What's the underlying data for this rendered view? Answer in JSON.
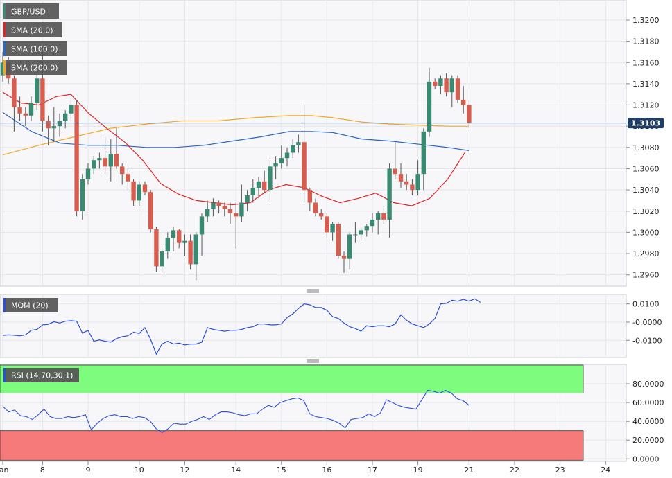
{
  "chart_data": [
    {
      "panel": "price",
      "type": "candlestick",
      "symbol": "GBP/USD",
      "ylim": [
        1.295,
        1.3215
      ],
      "yticks": [
        "1.3200",
        "1.3180",
        "1.3160",
        "1.3140",
        "1.3120",
        "1.3100",
        "1.3080",
        "1.3060",
        "1.3040",
        "1.3020",
        "1.3000",
        "1.2980",
        "1.2960"
      ],
      "yticks_values": [
        1.32,
        1.318,
        1.316,
        1.314,
        1.312,
        1.31,
        1.308,
        1.306,
        1.304,
        1.302,
        1.3,
        1.298,
        1.296
      ],
      "last_price": 1.3103,
      "last_price_label": "1.3103",
      "ohlc": [
        [
          1.3148,
          1.317,
          1.3142,
          1.316
        ],
        [
          1.316,
          1.3165,
          1.314,
          1.3145
        ],
        [
          1.3145,
          1.3148,
          1.3095,
          1.3118
        ],
        [
          1.3118,
          1.3128,
          1.3105,
          1.3112
        ],
        [
          1.3112,
          1.3118,
          1.31,
          1.311
        ],
        [
          1.311,
          1.3128,
          1.3105,
          1.3122
        ],
        [
          1.3122,
          1.315,
          1.3115,
          1.3145
        ],
        [
          1.3145,
          1.317,
          1.3095,
          1.3105
        ],
        [
          1.3105,
          1.311,
          1.3082,
          1.3098
        ],
        [
          1.3098,
          1.3118,
          1.3085,
          1.31
        ],
        [
          1.31,
          1.3112,
          1.309,
          1.3105
        ],
        [
          1.3105,
          1.3115,
          1.3098,
          1.3112
        ],
        [
          1.3112,
          1.3125,
          1.3105,
          1.312
        ],
        [
          1.312,
          1.3125,
          1.3015,
          1.302
        ],
        [
          1.302,
          1.3055,
          1.3012,
          1.305
        ],
        [
          1.305,
          1.3065,
          1.3045,
          1.306
        ],
        [
          1.306,
          1.3072,
          1.3055,
          1.3068
        ],
        [
          1.3068,
          1.3075,
          1.306,
          1.307
        ],
        [
          1.307,
          1.309,
          1.3055,
          1.3062
        ],
        [
          1.3062,
          1.3088,
          1.3048,
          1.3074
        ],
        [
          1.3074,
          1.3098,
          1.306,
          1.3062
        ],
        [
          1.3062,
          1.3065,
          1.3045,
          1.3055
        ],
        [
          1.3055,
          1.306,
          1.304,
          1.3048
        ],
        [
          1.3048,
          1.305,
          1.3025,
          1.303
        ],
        [
          1.303,
          1.3048,
          1.3025,
          1.3045
        ],
        [
          1.3045,
          1.3048,
          1.3035,
          1.3038
        ],
        [
          1.3038,
          1.304,
          1.3,
          1.3003
        ],
        [
          1.3003,
          1.3005,
          1.2963,
          1.2968
        ],
        [
          1.2968,
          1.2985,
          1.2962,
          1.2982
        ],
        [
          1.2982,
          1.3,
          1.2975,
          1.2995
        ],
        [
          1.2995,
          1.3005,
          1.2982,
          1.3002
        ],
        [
          1.3002,
          1.3003,
          1.2985,
          1.299
        ],
        [
          1.299,
          1.2998,
          1.2978,
          1.2992
        ],
        [
          1.2992,
          1.2998,
          1.2965,
          1.297
        ],
        [
          1.297,
          1.3,
          1.2955,
          1.2998
        ],
        [
          1.2998,
          1.3018,
          1.2978,
          1.3015
        ],
        [
          1.3015,
          1.303,
          1.301,
          1.3022
        ],
        [
          1.3022,
          1.3032,
          1.3015,
          1.3028
        ],
        [
          1.3028,
          1.303,
          1.3018,
          1.3025
        ],
        [
          1.3025,
          1.3028,
          1.3015,
          1.3022
        ],
        [
          1.3022,
          1.3028,
          1.3008,
          1.3018
        ],
        [
          1.3018,
          1.3028,
          1.2985,
          1.3015
        ],
        [
          1.3015,
          1.3045,
          1.301,
          1.3028
        ],
        [
          1.3028,
          1.304,
          1.302,
          1.3035
        ],
        [
          1.3035,
          1.305,
          1.3028,
          1.3042
        ],
        [
          1.3042,
          1.3052,
          1.3032,
          1.3048
        ],
        [
          1.3048,
          1.3058,
          1.3038,
          1.304
        ],
        [
          1.304,
          1.3068,
          1.303,
          1.3062
        ],
        [
          1.3062,
          1.3072,
          1.305,
          1.3065
        ],
        [
          1.3065,
          1.3082,
          1.306,
          1.307
        ],
        [
          1.307,
          1.308,
          1.3062,
          1.3075
        ],
        [
          1.3075,
          1.3088,
          1.307,
          1.3082
        ],
        [
          1.3082,
          1.3092,
          1.3075,
          1.3085
        ],
        [
          1.3085,
          1.312,
          1.3028,
          1.304
        ],
        [
          1.304,
          1.3042,
          1.302,
          1.3028
        ],
        [
          1.3028,
          1.3032,
          1.3015,
          1.3018
        ],
        [
          1.3018,
          1.3022,
          1.3012,
          1.3015
        ],
        [
          1.3015,
          1.3018,
          1.2995,
          1.3
        ],
        [
          1.3,
          1.301,
          1.2992,
          1.3008
        ],
        [
          1.3008,
          1.301,
          1.2975,
          1.2978
        ],
        [
          1.2978,
          1.2982,
          1.2962,
          1.2975
        ],
        [
          1.2975,
          1.3,
          1.2965,
          1.2998
        ],
        [
          1.2998,
          1.301,
          1.299,
          1.2998
        ],
        [
          1.2998,
          1.3005,
          1.2992,
          1.3002
        ],
        [
          1.3002,
          1.3008,
          1.2996,
          1.3006
        ],
        [
          1.3006,
          1.3018,
          1.3,
          1.3012
        ],
        [
          1.3012,
          1.302,
          1.2998,
          1.3018
        ],
        [
          1.3018,
          1.3025,
          1.3008,
          1.3012
        ],
        [
          1.3012,
          1.3065,
          1.2995,
          1.306
        ],
        [
          1.306,
          1.3085,
          1.305,
          1.3055
        ],
        [
          1.3055,
          1.3065,
          1.3042,
          1.3048
        ],
        [
          1.3048,
          1.3055,
          1.304,
          1.3045
        ],
        [
          1.3045,
          1.305,
          1.3035,
          1.304
        ],
        [
          1.304,
          1.3068,
          1.3035,
          1.3055
        ],
        [
          1.3055,
          1.3098,
          1.304,
          1.3095
        ],
        [
          1.3095,
          1.3155,
          1.309,
          1.3142
        ],
        [
          1.3142,
          1.3145,
          1.3135,
          1.3138
        ],
        [
          1.3138,
          1.3148,
          1.313,
          1.3145
        ],
        [
          1.3145,
          1.315,
          1.3128,
          1.3132
        ],
        [
          1.3132,
          1.3148,
          1.3118,
          1.3145
        ],
        [
          1.3145,
          1.3148,
          1.3122,
          1.3125
        ],
        [
          1.3125,
          1.3138,
          1.3112,
          1.312
        ],
        [
          1.312,
          1.3122,
          1.3098,
          1.3103
        ]
      ],
      "sma20_label": "SMA (20,0)",
      "sma20": [
        [
          0,
          1.3132
        ],
        [
          5,
          1.3122
        ],
        [
          10,
          1.312
        ],
        [
          15,
          1.3128
        ],
        [
          19,
          1.313
        ],
        [
          24,
          1.3112
        ],
        [
          29,
          1.3098
        ],
        [
          34,
          1.3085
        ],
        [
          39,
          1.3068
        ],
        [
          44,
          1.3046
        ],
        [
          49,
          1.3036
        ],
        [
          54,
          1.303
        ],
        [
          59,
          1.3028
        ],
        [
          64,
          1.3026
        ],
        [
          69,
          1.3028
        ],
        [
          74,
          1.304
        ],
        [
          79,
          1.3045
        ],
        [
          84,
          1.3042
        ],
        [
          89,
          1.3034
        ],
        [
          94,
          1.3028
        ],
        [
          99,
          1.3032
        ],
        [
          104,
          1.3037
        ],
        [
          109,
          1.3028
        ],
        [
          114,
          1.3025
        ],
        [
          119,
          1.3032
        ],
        [
          124,
          1.305
        ],
        [
          129,
          1.3076
        ]
      ],
      "sma100_label": "SMA (100,0)",
      "sma100": [
        [
          0,
          1.3113
        ],
        [
          8,
          1.3095
        ],
        [
          16,
          1.3084
        ],
        [
          24,
          1.3082
        ],
        [
          32,
          1.3082
        ],
        [
          40,
          1.308
        ],
        [
          48,
          1.308
        ],
        [
          56,
          1.3082
        ],
        [
          64,
          1.3086
        ],
        [
          72,
          1.309
        ],
        [
          80,
          1.3095
        ],
        [
          86,
          1.3095
        ],
        [
          92,
          1.3094
        ],
        [
          100,
          1.3088
        ],
        [
          108,
          1.3086
        ],
        [
          116,
          1.3083
        ],
        [
          124,
          1.308
        ],
        [
          130,
          1.3077
        ]
      ],
      "sma200_label": "SMA (200,0)",
      "sma200": [
        [
          0,
          1.3073
        ],
        [
          10,
          1.3082
        ],
        [
          20,
          1.309
        ],
        [
          30,
          1.3098
        ],
        [
          40,
          1.3102
        ],
        [
          50,
          1.3105
        ],
        [
          60,
          1.3105
        ],
        [
          70,
          1.3108
        ],
        [
          80,
          1.311
        ],
        [
          86,
          1.311
        ],
        [
          92,
          1.3108
        ],
        [
          100,
          1.3104
        ],
        [
          108,
          1.3102
        ],
        [
          116,
          1.3101
        ],
        [
          124,
          1.31
        ],
        [
          130,
          1.31
        ]
      ],
      "colors": {
        "bull": "#3a8a72",
        "bear": "#d95d4f",
        "sma20": "#e02424",
        "sma100": "#2a67c2",
        "sma200": "#f5a623",
        "last": "#1f3f66"
      }
    },
    {
      "panel": "momentum",
      "type": "line",
      "label": "MOM (20)",
      "ylim": [
        -0.019,
        0.0148
      ],
      "yticks": [
        "0.0100",
        "-0.0000",
        "-0.0100"
      ],
      "yticks_values": [
        0.01,
        0.0,
        -0.01
      ],
      "values": [
        -0.0073,
        -0.007,
        -0.0072,
        -0.0075,
        -0.007,
        -0.0045,
        -0.004,
        -0.0015,
        -0.0012,
        0.0002,
        -0.0005,
        0.0005,
        0.0008,
        0.0005,
        -0.006,
        -0.0045,
        -0.0105,
        -0.0098,
        -0.0105,
        -0.011,
        -0.009,
        -0.008,
        -0.0075,
        -0.0055,
        -0.0062,
        -0.003,
        -0.0095,
        -0.0175,
        -0.012,
        -0.0105,
        -0.012,
        -0.0115,
        -0.0125,
        -0.012,
        -0.012,
        -0.011,
        -0.003,
        -0.004,
        -0.0045,
        -0.005,
        -0.0045,
        -0.0045,
        -0.004,
        -0.003,
        -0.0025,
        -0.001,
        -0.001,
        -0.0015,
        -0.0015,
        -0.001,
        0.0025,
        0.0045,
        0.0075,
        0.01,
        0.0095,
        0.008,
        0.008,
        0.0065,
        0.003,
        0.002,
        -0.0005,
        -0.0025,
        -0.0035,
        -0.005,
        -0.002,
        -0.0025,
        -0.002,
        -0.002,
        -0.0025,
        -0.001,
        0.004,
        0.001,
        -0.001,
        -0.002,
        -0.003,
        -0.001,
        0.002,
        0.01,
        0.0103,
        0.012,
        0.0115,
        0.0125,
        0.0115,
        0.0128,
        0.0108
      ],
      "color": "#2a4fd8"
    },
    {
      "panel": "rsi",
      "type": "line",
      "label": "RSI (14,70,30,1)",
      "ylim": [
        -2,
        100
      ],
      "yticks": [
        "80.0000",
        "60.0000",
        "40.0000",
        "20.0000",
        "0.0000"
      ],
      "yticks_values": [
        80,
        60,
        40,
        20,
        0
      ],
      "overbought": 70,
      "oversold": 30,
      "values": [
        56,
        50,
        52,
        46,
        45,
        42,
        47,
        53,
        45,
        43,
        43,
        45,
        44,
        45,
        47,
        31,
        38,
        43,
        46,
        47,
        45,
        45,
        43,
        45,
        44,
        40,
        32,
        28,
        32,
        38,
        37,
        37,
        40,
        42,
        45,
        42,
        47,
        50,
        50,
        49,
        47,
        46,
        48,
        48,
        53,
        57,
        55,
        60,
        62,
        64,
        65,
        62,
        48,
        45,
        44,
        43,
        41,
        38,
        33,
        42,
        43,
        44,
        48,
        45,
        49,
        63,
        60,
        57,
        55,
        54,
        53,
        63,
        73,
        72,
        70,
        73,
        70,
        64,
        62,
        57
      ],
      "colors": {
        "line": "#2a4fd8",
        "overbought_fill": "#7dfc7d",
        "oversold_fill": "#f77a7a"
      }
    }
  ],
  "x_axis": {
    "labels": [
      {
        "text": "Jan",
        "i": 0
      },
      {
        "text": "8",
        "i": 7
      },
      {
        "text": "9",
        "i": 15
      },
      {
        "text": "10",
        "i": 24
      },
      {
        "text": "12",
        "i": 32
      },
      {
        "text": "14",
        "i": 41
      },
      {
        "text": "15",
        "i": 49
      },
      {
        "text": "16",
        "i": 57
      },
      {
        "text": "17",
        "i": 65
      },
      {
        "text": "19",
        "i": 73
      },
      {
        "text": "21",
        "i": 82
      },
      {
        "text": "22",
        "i": 90
      },
      {
        "text": "23",
        "i": 98
      },
      {
        "text": "24",
        "i": 106
      }
    ]
  }
}
